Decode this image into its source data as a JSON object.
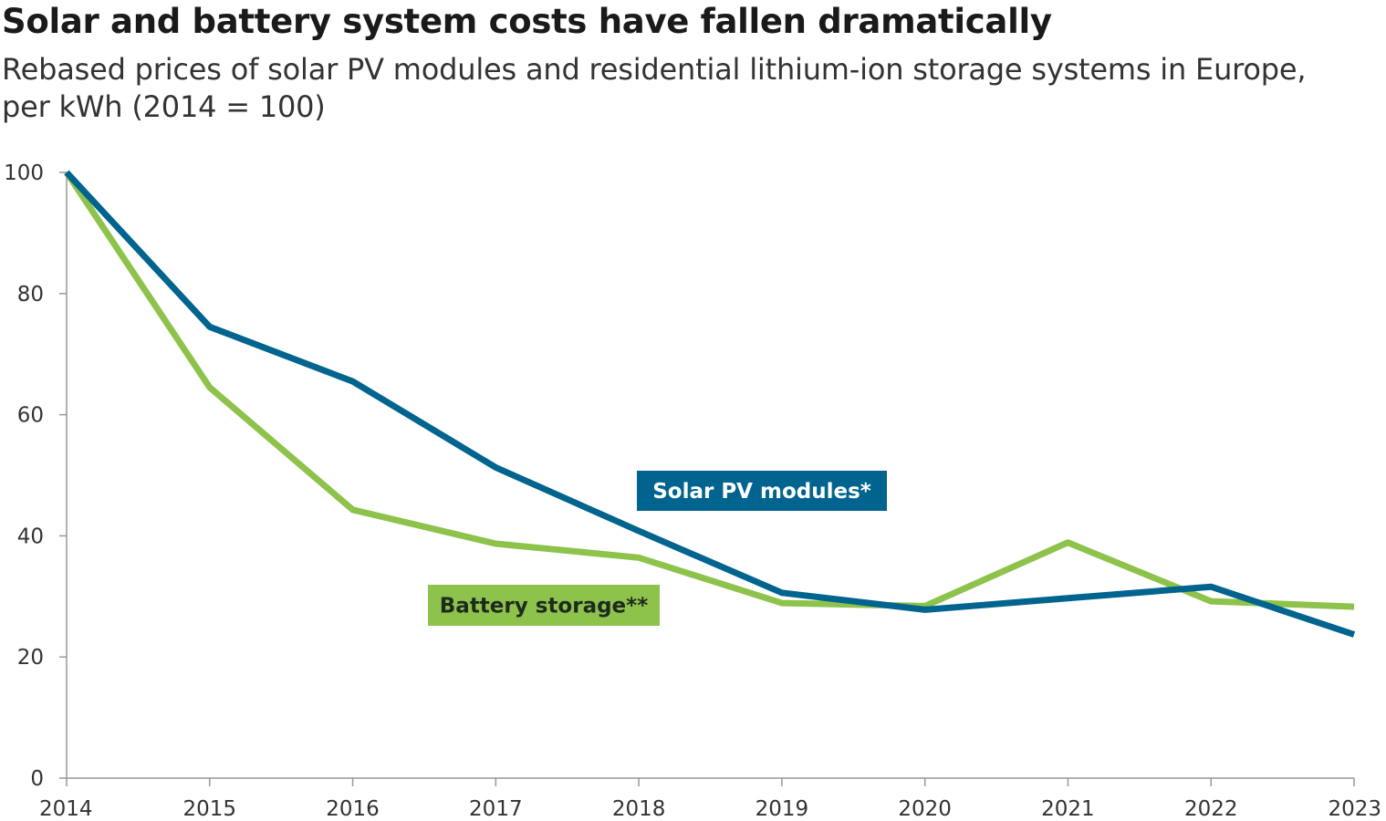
{
  "title": "Solar and battery system costs have fallen dramatically",
  "subtitle": "Rebased prices of solar PV modules and residential lithium-ion storage systems in Europe, per kWh (2014 = 100)",
  "chart_data": {
    "type": "line",
    "x": [
      "2014",
      "2015",
      "2016",
      "2017",
      "2018",
      "2019",
      "2020",
      "2021",
      "2022",
      "2023"
    ],
    "series": [
      {
        "name": "Solar PV modules*",
        "color": "#00648f",
        "label_text_color": "#ffffff",
        "values": [
          100,
          74.5,
          65.5,
          51.3,
          40.8,
          30.6,
          27.8,
          29.7,
          31.6,
          23.7
        ]
      },
      {
        "name": "Battery storage**",
        "color": "#8dc24b",
        "label_text_color": "#1f2a1f",
        "values": [
          100,
          64.5,
          44.3,
          38.7,
          36.4,
          28.9,
          28.4,
          38.9,
          29.2,
          28.3
        ]
      }
    ],
    "ylim": [
      0,
      100
    ],
    "yticks": [
      0,
      20,
      40,
      60,
      80,
      100
    ],
    "xlabel": "",
    "ylabel": "",
    "grid": false,
    "legend": "inline labels"
  }
}
